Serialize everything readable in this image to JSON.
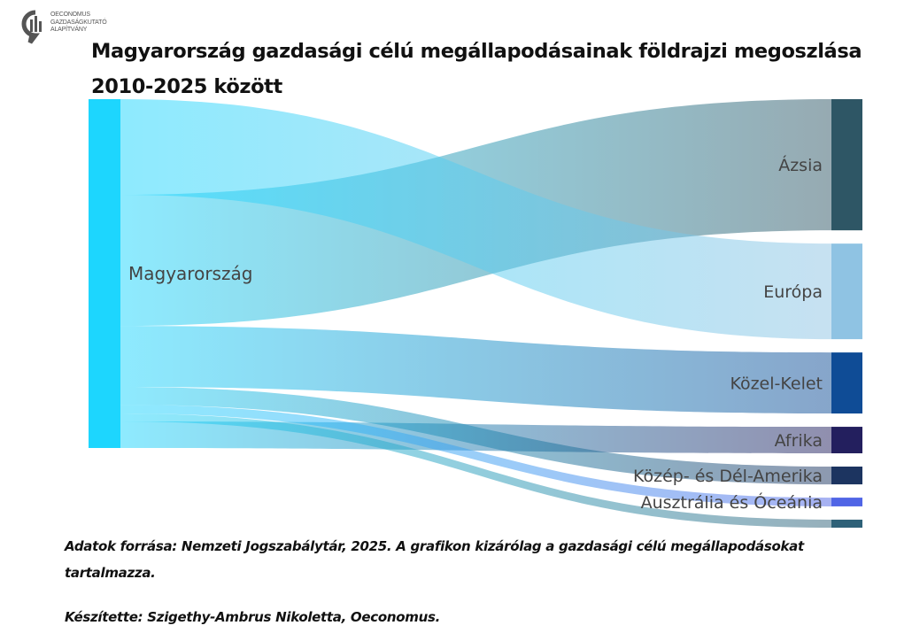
{
  "logo": {
    "lines": [
      "OECONOMUS",
      "GAZDASÁGKUTATÓ",
      "ALAPÍTVÁNY"
    ]
  },
  "title": "Magyarország gazdasági célú megállapodásainak földrajzi megoszlása 2010-2025 között",
  "chart_data": {
    "type": "sankey",
    "title": "Magyarország gazdasági célú megállapodásainak földrajzi megoszlása 2010-2025 között",
    "unit_note": "estimated shares (%) read from node heights",
    "source": {
      "name": "Magyarország",
      "color": "#1dd6fe"
    },
    "targets": [
      {
        "name": "Ázsia",
        "value": 37.6,
        "color": "#2e5665"
      },
      {
        "name": "Európa",
        "value": 27.4,
        "color": "#8fc3e3"
      },
      {
        "name": "Közel-Kelet",
        "value": 17.5,
        "color": "#0f4c96"
      },
      {
        "name": "Afrika",
        "value": 7.6,
        "color": "#231f5e"
      },
      {
        "name": "Közép- és Dél-Amerika",
        "value": 5.1,
        "color": "#1c3460"
      },
      {
        "name": "Ausztrália és Óceánia",
        "value": 2.5,
        "color": "#5065e6"
      },
      {
        "name": "",
        "value": 2.3,
        "color": "#2e6178"
      }
    ],
    "link_order_at_source": [
      "Európa",
      "Ázsia",
      "Közel-Kelet",
      "Közép- és Dél-Amerika",
      "Ausztrália és Óceánia",
      "",
      "Afrika"
    ]
  },
  "footer": {
    "source": "Adatok forrása: Nemzeti Jogszabálytár, 2025. A grafikon kizárólag a gazdasági célú megállapodásokat tartalmazza.",
    "author": "Készítette: Szigethy-Ambrus Nikoletta, Oeconomus."
  }
}
